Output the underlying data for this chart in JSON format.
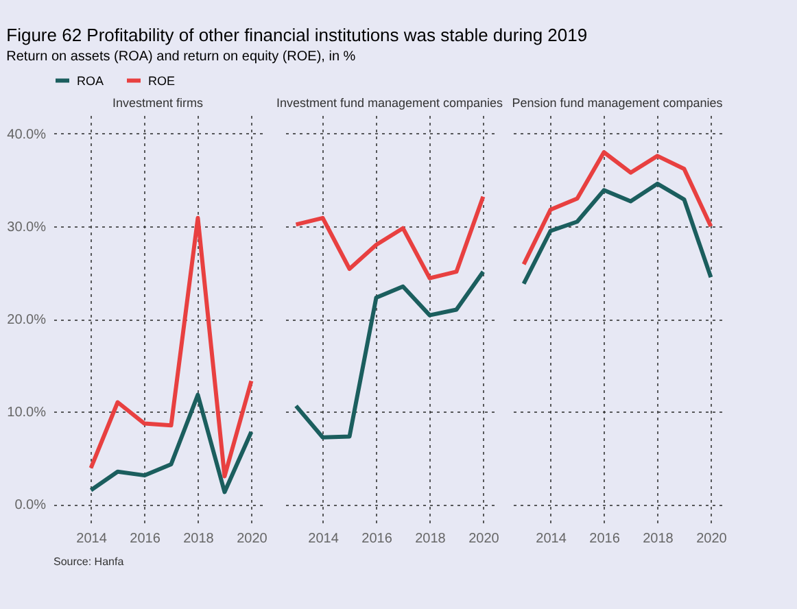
{
  "chart_data": [
    {
      "type": "line",
      "title": "Investment firms",
      "annotations": [
        "Figure 62 Profitability of other financial institutions was stable during 2019",
        "Return on assets (ROA) and return on equity (ROE), in %",
        "Source: Hanfa"
      ],
      "series": [
        {
          "name": "ROA",
          "color": "#1b5e5e",
          "x": [
            2014,
            2015,
            2016,
            2017,
            2018,
            2019,
            2020
          ],
          "values": [
            1.5,
            3.5,
            3.1,
            4.3,
            11.8,
            1.3,
            7.8
          ]
        },
        {
          "name": "ROE",
          "color": "#e84040",
          "x": [
            2014,
            2015,
            2016,
            2017,
            2018,
            2019,
            2020
          ],
          "values": [
            3.9,
            11.0,
            8.7,
            8.5,
            30.9,
            3.0,
            13.3
          ]
        }
      ],
      "xlim": [
        2012.6,
        2020.4
      ],
      "xticks": [
        2014,
        2016,
        2018,
        2020
      ],
      "ylim": [
        -2,
        42
      ],
      "yticks": [
        {
          "value": 0,
          "label": "0.0%"
        },
        {
          "value": 10,
          "label": "10.0%"
        },
        {
          "value": 20,
          "label": "20.0%"
        },
        {
          "value": 30,
          "label": "30.0%"
        },
        {
          "value": 40,
          "label": "40.0%"
        }
      ],
      "grid": true,
      "legend": "top",
      "line_style": "solid"
    },
    {
      "type": "line",
      "title": "Investment fund management companies",
      "series": [
        {
          "name": "ROA",
          "color": "#1b5e5e",
          "x": [
            2013,
            2014,
            2015,
            2016,
            2017,
            2018,
            2019,
            2020
          ],
          "values": [
            10.6,
            7.2,
            7.3,
            22.3,
            23.5,
            20.4,
            21.0,
            25.1
          ]
        },
        {
          "name": "ROE",
          "color": "#e84040",
          "x": [
            2013,
            2014,
            2015,
            2016,
            2017,
            2018,
            2019,
            2020
          ],
          "values": [
            30.2,
            30.9,
            25.4,
            28.0,
            29.8,
            24.4,
            25.1,
            33.2
          ]
        }
      ],
      "xlim": [
        2012.6,
        2020.4
      ],
      "xticks": [
        2014,
        2016,
        2018,
        2020
      ],
      "ylim": [
        -2,
        42
      ],
      "yticks": [
        0,
        10,
        20,
        30,
        40
      ],
      "grid": true,
      "tick_labels": "x",
      "line_style": "solid"
    },
    {
      "type": "line",
      "title": "Pension fund management companies",
      "series": [
        {
          "name": "ROA",
          "color": "#1b5e5e",
          "x": [
            2013,
            2014,
            2015,
            2016,
            2017,
            2018,
            2019,
            2020
          ],
          "values": [
            23.8,
            29.5,
            30.5,
            33.9,
            32.7,
            34.6,
            32.9,
            24.5
          ]
        },
        {
          "name": "ROE",
          "color": "#e84040",
          "x": [
            2013,
            2014,
            2015,
            2016,
            2017,
            2018,
            2019,
            2020
          ],
          "values": [
            25.9,
            31.8,
            33.0,
            38.0,
            35.8,
            37.6,
            36.2,
            30.0
          ]
        }
      ],
      "xlim": [
        2012.6,
        2020.4
      ],
      "xticks": [
        2014,
        2016,
        2018,
        2020
      ],
      "ylim": [
        -2,
        42
      ],
      "yticks": [
        0,
        10,
        20,
        30,
        40
      ],
      "grid": true,
      "tick_labels": "x",
      "line_style": "solid"
    }
  ]
}
